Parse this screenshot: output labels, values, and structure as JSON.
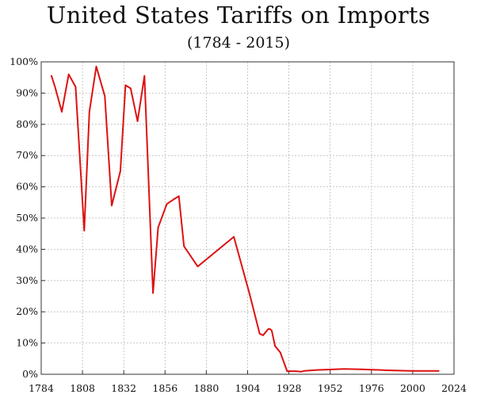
{
  "chart_data": {
    "type": "line",
    "title": "United States Tariffs on Imports",
    "subtitle": "(1784 - 2015)",
    "xlabel": "",
    "ylabel": "",
    "xlim": [
      1784,
      2024
    ],
    "ylim": [
      0,
      100
    ],
    "x_ticks": [
      1784,
      1808,
      1832,
      1856,
      1880,
      1904,
      1928,
      1952,
      1976,
      2000,
      2024
    ],
    "y_ticks": [
      "0%",
      "10%",
      "20%",
      "30%",
      "40%",
      "50%",
      "60%",
      "70%",
      "80%",
      "90%",
      "100%"
    ],
    "y_tick_values": [
      0,
      10,
      20,
      30,
      40,
      50,
      60,
      70,
      80,
      90,
      100
    ],
    "grid": true,
    "line_color": "#dd1111",
    "series": [
      {
        "x": [
          1790,
          1792,
          1796,
          1800,
          1804,
          1809,
          1812,
          1816,
          1821,
          1825,
          1830,
          1833,
          1836,
          1840,
          1844,
          1849,
          1852,
          1857,
          1861,
          1864,
          1867,
          1875,
          1896,
          1905,
          1911,
          1913,
          1916,
          1917,
          1918,
          1920,
          1923,
          1927,
          1932,
          1935,
          1937,
          1940,
          1945,
          1950,
          1960,
          1970,
          1980,
          1984,
          1990,
          2000,
          2015
        ],
        "y": [
          95.5,
          92,
          84,
          96,
          92,
          46,
          84,
          98.5,
          89,
          54,
          65,
          92.5,
          91.5,
          81,
          95.5,
          26,
          47,
          54.5,
          56,
          57,
          41,
          34.5,
          44,
          26,
          13,
          12.5,
          14.5,
          14.5,
          14,
          9,
          7,
          1,
          1,
          0.8,
          1.1,
          1.2,
          1.4,
          1.5,
          1.7,
          1.6,
          1.4,
          1.3,
          1.2,
          1.1,
          1.1
        ]
      }
    ]
  }
}
